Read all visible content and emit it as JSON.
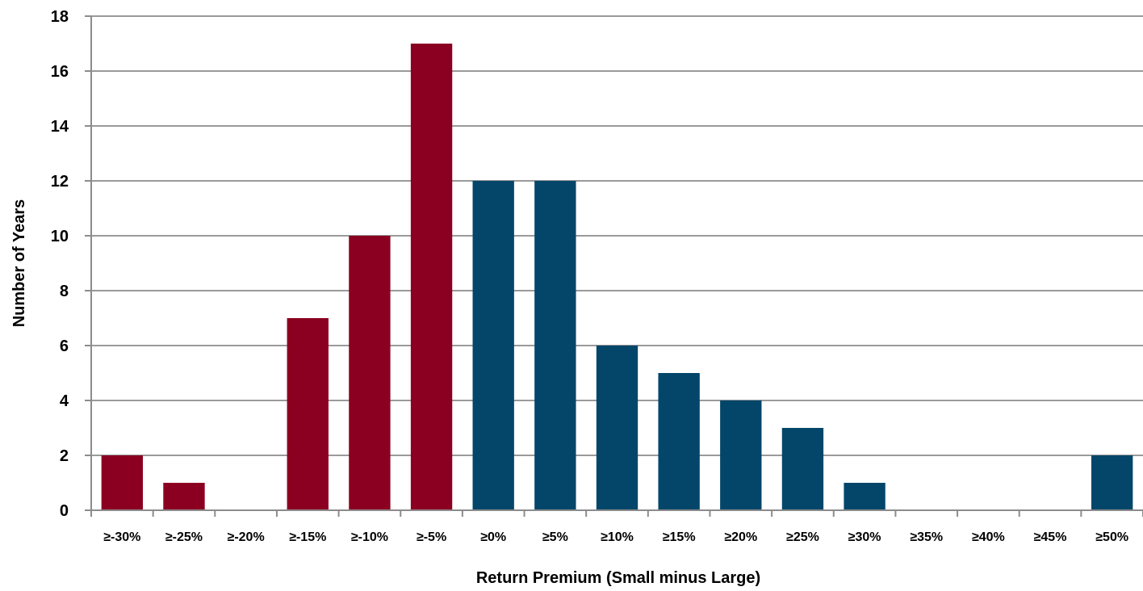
{
  "chart_data": {
    "type": "bar",
    "title": "",
    "xlabel": "Return Premium (Small minus Large)",
    "ylabel": "Number of Years",
    "ylim": [
      0,
      18
    ],
    "yticks": [
      0,
      2,
      4,
      6,
      8,
      10,
      12,
      14,
      16,
      18
    ],
    "grid": true,
    "legend": "none",
    "categories": [
      "≥-30%",
      "≥-25%",
      "≥-20%",
      "≥-15%",
      "≥-10%",
      "≥-5%",
      "≥0%",
      "≥5%",
      "≥10%",
      "≥15%",
      "≥20%",
      "≥25%",
      "≥30%",
      "≥35%",
      "≥40%",
      "≥45%",
      "≥50%"
    ],
    "values": [
      2,
      1,
      0,
      7,
      10,
      17,
      12,
      12,
      6,
      5,
      4,
      3,
      1,
      0,
      0,
      0,
      2
    ],
    "colors": {
      "negative": "#8b0020",
      "positive": "#03466a",
      "grid": "#9a9a9a",
      "axis": "#8c8c8c"
    }
  }
}
